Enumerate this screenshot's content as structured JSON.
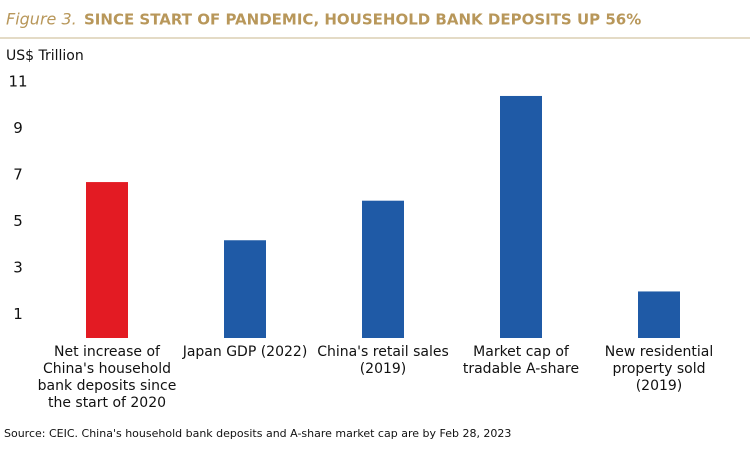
{
  "chart_data": {
    "type": "bar",
    "figure_label": "Figure 3.",
    "title": "SINCE START OF PANDEMIC, HOUSEHOLD BANK DEPOSITS UP 56%",
    "y_label": "US$ Trillion",
    "categories": [
      "Net increase of China's household bank deposits since the start of 2020",
      "Japan GDP (2022)",
      "China's retail sales (2019)",
      "Market cap of tradable A-share",
      "New residential property sold (2019)"
    ],
    "values": [
      6.7,
      4.2,
      5.9,
      10.4,
      2.0
    ],
    "colors": [
      "#e31b23",
      "#1f5aa6",
      "#1f5aa6",
      "#1f5aa6",
      "#1f5aa6"
    ],
    "ylim": [
      0,
      11
    ],
    "yticks": [
      1,
      3,
      5,
      7,
      9,
      11
    ],
    "grid": false,
    "source": "Source: CEIC. China's household bank deposits and A-share market cap are by Feb 28, 2023"
  }
}
